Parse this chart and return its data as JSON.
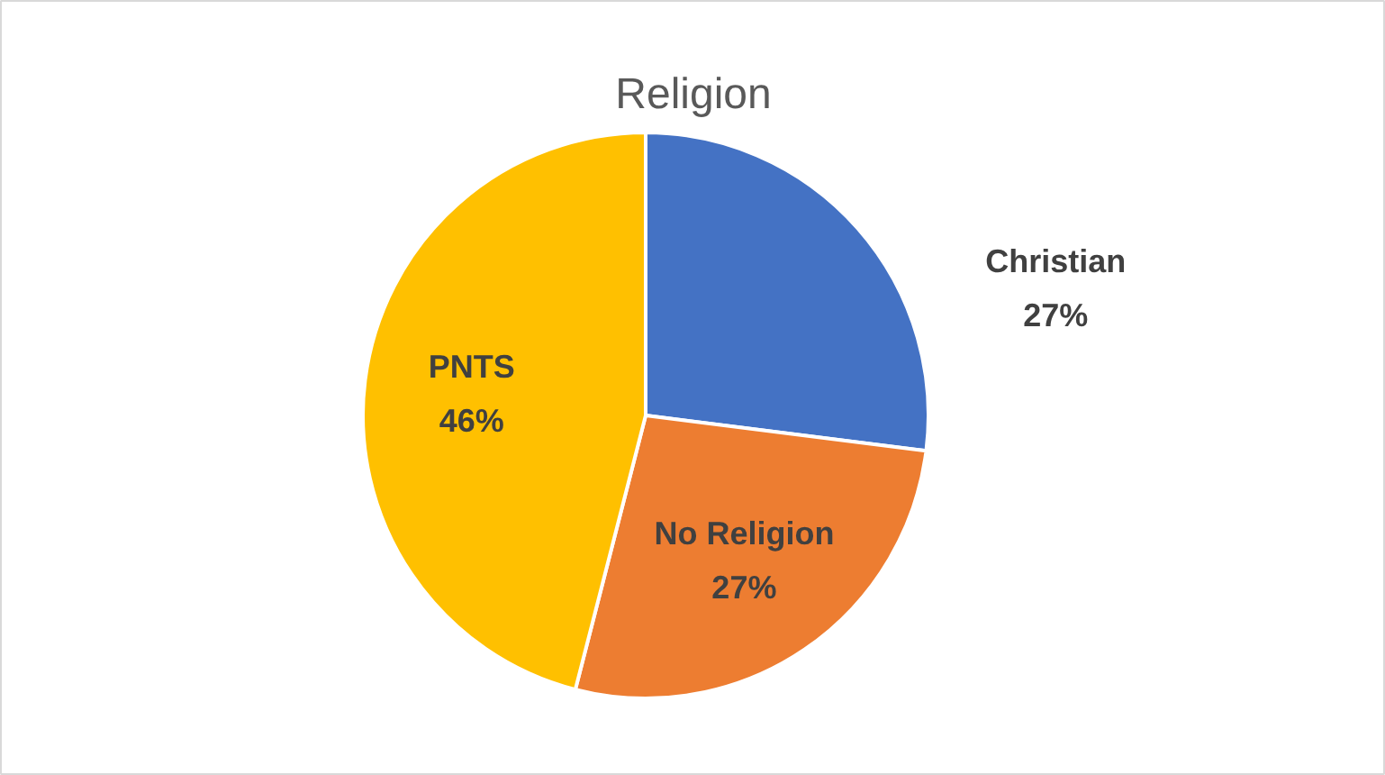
{
  "chart_data": {
    "type": "pie",
    "title": "Religion",
    "categories": [
      "Christian",
      "No Religion",
      "PNTS"
    ],
    "values": [
      27,
      27,
      46
    ],
    "value_labels": [
      "27%",
      "27%",
      "46%"
    ],
    "colors": [
      "#4472c4",
      "#ed7d31",
      "#ffc000"
    ],
    "legend": false
  }
}
